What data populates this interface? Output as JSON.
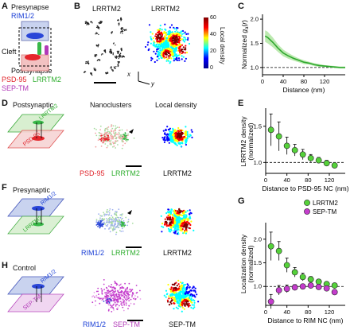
{
  "panels": {
    "A": {
      "label": "A",
      "presynapse": "Presynapse",
      "rim": "RIM1/2",
      "cleft": "Cleft",
      "postsynapse": "Postsynapse",
      "psd95": "PSD-95",
      "lrrtm2": "LRRTM2",
      "septm": "SEP-TM"
    },
    "B": {
      "label": "B",
      "title_left": "LRRTM2",
      "title_right": "LRRTM2",
      "colorbar_label": "Local density",
      "colorbar_ticks": [
        "0",
        "20",
        "40",
        "60"
      ],
      "axis_x": "x",
      "axis_y": "y"
    },
    "C": {
      "label": "C"
    },
    "D": {
      "label": "D",
      "title": "Postsynaptic",
      "nanoclusters": "Nanoclusters",
      "local_density": "Local density",
      "plane_top": "LRRTM2",
      "plane_bottom": "PSD-95",
      "legend_a": "PSD-95",
      "legend_b": "LRRTM2",
      "density_label": "LRRTM2"
    },
    "E": {
      "label": "E"
    },
    "F": {
      "label": "F",
      "title": "Presynaptic",
      "plane_top": "RIM1/2",
      "plane_bottom": "LRRTM2",
      "legend_a": "RIM1/2",
      "legend_b": "LRRTM2",
      "density_label": "LRRTM2"
    },
    "G": {
      "label": "G",
      "legend": [
        {
          "name": "LRRTM2",
          "color": "#55d13a"
        },
        {
          "name": "SEP-TM",
          "color": "#c43ccc"
        }
      ]
    },
    "H": {
      "label": "H",
      "title": "Control",
      "plane_top": "RIM1/2",
      "plane_bottom": "SEP-TM",
      "legend_a": "RIM1/2",
      "legend_b": "SEP-TM",
      "density_label": "SEP-TM"
    }
  },
  "chart_data": [
    {
      "id": "C",
      "type": "line",
      "xlabel": "Distance (nm)",
      "ylabel": "Normalized g_a(r)",
      "xlim": [
        0,
        160
      ],
      "ylim": [
        0.85,
        2.1
      ],
      "xticks": [
        0,
        40,
        80,
        120
      ],
      "yticks": [
        1.0,
        1.5,
        2.0
      ],
      "reference_line": 1.0,
      "series": [
        {
          "color": "#2ea82e",
          "x": [
            5,
            10,
            20,
            30,
            40,
            50,
            60,
            70,
            80,
            90,
            100,
            110,
            120,
            130,
            140,
            150,
            160
          ],
          "values": [
            1.65,
            1.62,
            1.52,
            1.4,
            1.3,
            1.24,
            1.19,
            1.15,
            1.11,
            1.09,
            1.06,
            1.04,
            1.03,
            1.02,
            1.01,
            1.0,
            1.0
          ],
          "band": [
            0.12,
            0.12,
            0.1,
            0.08,
            0.07,
            0.06,
            0.05,
            0.04,
            0.04,
            0.03,
            0.03,
            0.03,
            0.02,
            0.02,
            0.02,
            0.02,
            0.02
          ]
        }
      ]
    },
    {
      "id": "E",
      "type": "scatter",
      "xlabel": "Distance to PSD-95 NC (nm)",
      "ylabel": "LRRTM2 density (normalized)",
      "xlim": [
        0,
        150
      ],
      "ylim": [
        0.85,
        1.75
      ],
      "xticks": [
        0,
        40,
        80,
        120
      ],
      "yticks": [
        1.0,
        1.5
      ],
      "reference_line": 1.0,
      "series": [
        {
          "color": "#55d13a",
          "x": [
            10,
            25,
            40,
            55,
            70,
            85,
            100,
            115,
            130
          ],
          "values": [
            1.45,
            1.36,
            1.23,
            1.17,
            1.11,
            1.06,
            1.03,
            0.99,
            0.96
          ],
          "errors": [
            0.22,
            0.2,
            0.12,
            0.08,
            0.07,
            0.05,
            0.04,
            0.04,
            0.03
          ]
        }
      ]
    },
    {
      "id": "G",
      "type": "scatter",
      "xlabel": "Distance to RIM NC (nm)",
      "ylabel": "Localization density (normalized)",
      "xlim": [
        0,
        150
      ],
      "ylim": [
        0.6,
        2.35
      ],
      "xticks": [
        0,
        40,
        80,
        120
      ],
      "yticks": [
        1.0,
        1.5,
        2.0
      ],
      "reference_line": 1.0,
      "series": [
        {
          "name": "LRRTM2",
          "color": "#55d13a",
          "x": [
            10,
            25,
            40,
            55,
            70,
            85,
            100,
            115,
            130
          ],
          "values": [
            1.85,
            1.75,
            1.45,
            1.3,
            1.2,
            1.15,
            1.1,
            1.05,
            1.02
          ],
          "errors": [
            0.3,
            0.2,
            0.15,
            0.1,
            0.08,
            0.06,
            0.05,
            0.05,
            0.04
          ]
        },
        {
          "name": "SEP-TM",
          "color": "#c43ccc",
          "x": [
            10,
            25,
            40,
            55,
            70,
            85,
            100,
            115,
            130
          ],
          "values": [
            0.68,
            0.92,
            0.95,
            0.98,
            1.0,
            1.02,
            0.99,
            0.96,
            0.88
          ],
          "errors": [
            0.15,
            0.1,
            0.08,
            0.06,
            0.05,
            0.05,
            0.05,
            0.05,
            0.05
          ]
        }
      ]
    }
  ]
}
